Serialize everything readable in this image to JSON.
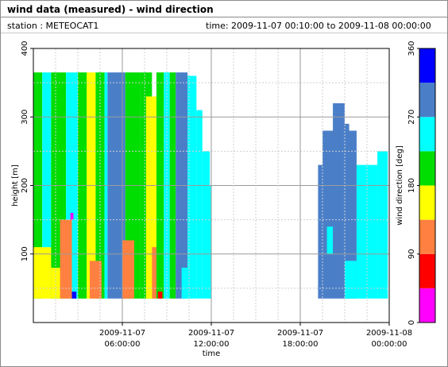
{
  "header": {
    "title": "wind data (measured) - wind direction",
    "station": "station : METEOCAT1",
    "time": "time: 2009-11-07 00:10:00 to 2009-11-08 00:00:00"
  },
  "chart_data": {
    "type": "heatmap",
    "xlabel": "time",
    "ylabel": "height [m]",
    "ylim": [
      0,
      400
    ],
    "xlim_hours": [
      0,
      24
    ],
    "x_ticks": [
      {
        "hours": 6,
        "line1": "2009-11-07",
        "line2": "06:00:00"
      },
      {
        "hours": 12,
        "line1": "2009-11-07",
        "line2": "12:00:00"
      },
      {
        "hours": 18,
        "line1": "2009-11-07",
        "line2": "18:00:00"
      },
      {
        "hours": 24,
        "line1": "2009-11-08",
        "line2": "00:00:00"
      }
    ],
    "y_ticks": [
      100,
      200,
      300,
      400
    ],
    "grid": true,
    "colorbar": {
      "label": "wind direction [deg]",
      "ticks": [
        0,
        90,
        180,
        270,
        360
      ],
      "bins": [
        {
          "from": 0,
          "to": 45,
          "color": "#ff00ff"
        },
        {
          "from": 45,
          "to": 90,
          "color": "#ff0000"
        },
        {
          "from": 90,
          "to": 135,
          "color": "#ff8040"
        },
        {
          "from": 135,
          "to": 180,
          "color": "#ffff00"
        },
        {
          "from": 180,
          "to": 225,
          "color": "#00dd00"
        },
        {
          "from": 225,
          "to": 270,
          "color": "#00ffff"
        },
        {
          "from": 270,
          "to": 315,
          "color": "#4a7fc8"
        },
        {
          "from": 315,
          "to": 360,
          "color": "#0000ff"
        }
      ]
    },
    "regions": [
      {
        "t0": 0.0,
        "t1": 0.6,
        "h0": 35,
        "h1": 365,
        "dir": 200
      },
      {
        "t0": 0.0,
        "t1": 1.2,
        "h0": 35,
        "h1": 110,
        "dir": 160
      },
      {
        "t0": 0.6,
        "t1": 1.2,
        "h0": 110,
        "h1": 365,
        "dir": 250
      },
      {
        "t0": 1.2,
        "t1": 2.2,
        "h0": 35,
        "h1": 365,
        "dir": 200
      },
      {
        "t0": 1.2,
        "t1": 2.2,
        "h0": 35,
        "h1": 80,
        "dir": 160
      },
      {
        "t0": 2.2,
        "t1": 3.0,
        "h0": 35,
        "h1": 365,
        "dir": 250
      },
      {
        "t0": 3.0,
        "t1": 3.6,
        "h0": 35,
        "h1": 365,
        "dir": 200
      },
      {
        "t0": 1.8,
        "t1": 2.6,
        "h0": 35,
        "h1": 150,
        "dir": 120
      },
      {
        "t0": 3.6,
        "t1": 4.2,
        "h0": 35,
        "h1": 365,
        "dir": 160
      },
      {
        "t0": 4.2,
        "t1": 4.8,
        "h0": 35,
        "h1": 365,
        "dir": 200
      },
      {
        "t0": 3.8,
        "t1": 4.6,
        "h0": 35,
        "h1": 90,
        "dir": 120
      },
      {
        "t0": 4.8,
        "t1": 5.0,
        "h0": 35,
        "h1": 365,
        "dir": 250
      },
      {
        "t0": 5.0,
        "t1": 6.2,
        "h0": 35,
        "h1": 365,
        "dir": 290
      },
      {
        "t0": 6.2,
        "t1": 7.2,
        "h0": 35,
        "h1": 365,
        "dir": 200
      },
      {
        "t0": 6.0,
        "t1": 6.8,
        "h0": 35,
        "h1": 120,
        "dir": 120
      },
      {
        "t0": 7.2,
        "t1": 8.0,
        "h0": 35,
        "h1": 365,
        "dir": 200
      },
      {
        "t0": 7.6,
        "t1": 8.3,
        "h0": 35,
        "h1": 330,
        "dir": 160
      },
      {
        "t0": 8.0,
        "t1": 8.6,
        "h0": 35,
        "h1": 110,
        "dir": 120
      },
      {
        "t0": 8.3,
        "t1": 8.8,
        "h0": 35,
        "h1": 365,
        "dir": 200
      },
      {
        "t0": 8.8,
        "t1": 9.2,
        "h0": 35,
        "h1": 365,
        "dir": 250
      },
      {
        "t0": 9.2,
        "t1": 9.6,
        "h0": 35,
        "h1": 365,
        "dir": 200
      },
      {
        "t0": 9.6,
        "t1": 10.4,
        "h0": 35,
        "h1": 365,
        "dir": 290
      },
      {
        "t0": 10.0,
        "t1": 10.6,
        "h0": 35,
        "h1": 80,
        "dir": 250
      },
      {
        "t0": 10.4,
        "t1": 11.0,
        "h0": 35,
        "h1": 360,
        "dir": 250
      },
      {
        "t0": 11.0,
        "t1": 11.4,
        "h0": 35,
        "h1": 310,
        "dir": 250
      },
      {
        "t0": 11.4,
        "t1": 11.9,
        "h0": 35,
        "h1": 250,
        "dir": 250
      },
      {
        "t0": 11.9,
        "t1": 12.0,
        "h0": 35,
        "h1": 200,
        "dir": 250
      },
      {
        "t0": 2.6,
        "t1": 2.9,
        "h0": 35,
        "h1": 45,
        "dir": 320
      },
      {
        "t0": 8.4,
        "t1": 8.7,
        "h0": 35,
        "h1": 45,
        "dir": 60
      },
      {
        "t0": 2.5,
        "t1": 2.7,
        "h0": 150,
        "h1": 160,
        "dir": 20
      },
      {
        "t0": 19.2,
        "t1": 19.5,
        "h0": 35,
        "h1": 230,
        "dir": 290
      },
      {
        "t0": 19.5,
        "t1": 21.8,
        "h0": 35,
        "h1": 280,
        "dir": 290
      },
      {
        "t0": 20.2,
        "t1": 21.0,
        "h0": 240,
        "h1": 320,
        "dir": 290
      },
      {
        "t0": 21.0,
        "t1": 21.3,
        "h0": 250,
        "h1": 290,
        "dir": 290
      },
      {
        "t0": 21.8,
        "t1": 23.2,
        "h0": 35,
        "h1": 230,
        "dir": 250
      },
      {
        "t0": 23.2,
        "t1": 23.9,
        "h0": 35,
        "h1": 250,
        "dir": 250
      },
      {
        "t0": 21.0,
        "t1": 21.8,
        "h0": 35,
        "h1": 90,
        "dir": 250
      },
      {
        "t0": 19.8,
        "t1": 20.2,
        "h0": 100,
        "h1": 140,
        "dir": 250
      }
    ]
  }
}
